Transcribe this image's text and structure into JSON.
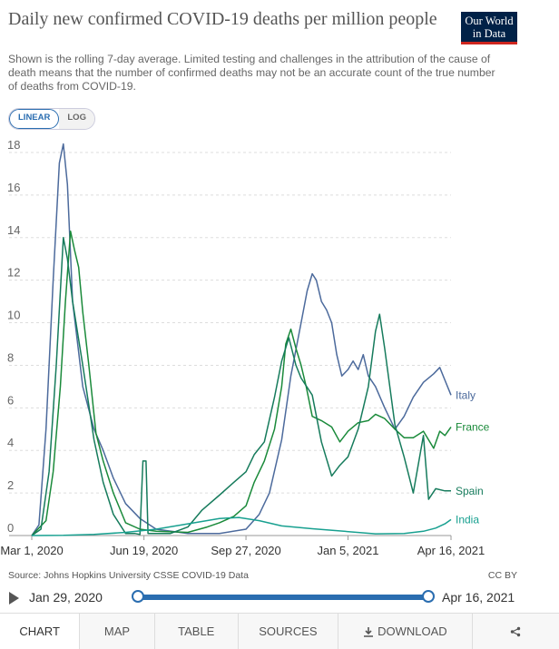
{
  "header": {
    "title": "Daily new confirmed COVID-19 deaths per million people",
    "subtitle": "Shown is the rolling 7-day average. Limited testing and challenges in the attribution of the cause of death means that the number of confirmed deaths may not be an accurate count of the true number of deaths from COVID-19.",
    "logo_line1": "Our World",
    "logo_line2": "in Data",
    "logo_color": "#002147",
    "logo_accent": "#ce261e"
  },
  "scale_toggle": {
    "linear_label": "LINEAR",
    "log_label": "LOG",
    "selected": "LINEAR"
  },
  "footer": {
    "source": "Source: Johns Hopkins University CSSE COVID-19 Data",
    "license": "CC BY"
  },
  "timeline": {
    "start_label": "Jan 29, 2020",
    "end_label": "Apr 16, 2021",
    "accent": "#2a6db0"
  },
  "tabs": [
    {
      "label": "CHART",
      "icon": ""
    },
    {
      "label": "MAP",
      "icon": ""
    },
    {
      "label": "TABLE",
      "icon": ""
    },
    {
      "label": "SOURCES",
      "icon": ""
    },
    {
      "label": "DOWNLOAD",
      "icon": "download-icon"
    },
    {
      "label": "",
      "icon": "share-icon"
    }
  ],
  "chart_data": {
    "type": "line",
    "title": "Daily new confirmed COVID-19 deaths per million people",
    "xlabel": "",
    "ylabel": "",
    "ylim": [
      0,
      18
    ],
    "y_ticks": [
      0,
      2,
      4,
      6,
      8,
      10,
      12,
      14,
      16,
      18
    ],
    "x_ticks": [
      "Mar 1, 2020",
      "Jun 19, 2020",
      "Sep 27, 2020",
      "Jan 5, 2021",
      "Apr 16, 2021"
    ],
    "x_range": [
      "2020-03-01",
      "2021-04-16"
    ],
    "grid": "horizontal dashed",
    "legend": "labels at line ends (right)",
    "series": [
      {
        "name": "Italy",
        "color": "#4c6a9c",
        "points": [
          [
            "2020-03-01",
            0
          ],
          [
            "2020-03-08",
            0.5
          ],
          [
            "2020-03-15",
            5
          ],
          [
            "2020-03-22",
            12
          ],
          [
            "2020-03-28",
            17.5
          ],
          [
            "2020-04-01",
            18.4
          ],
          [
            "2020-04-05",
            16.5
          ],
          [
            "2020-04-10",
            11
          ],
          [
            "2020-04-20",
            7
          ],
          [
            "2020-05-01",
            5
          ],
          [
            "2020-05-10",
            4
          ],
          [
            "2020-05-20",
            2.7
          ],
          [
            "2020-06-01",
            1.5
          ],
          [
            "2020-06-15",
            0.8
          ],
          [
            "2020-07-01",
            0.3
          ],
          [
            "2020-08-01",
            0.1
          ],
          [
            "2020-08-15",
            0.1
          ],
          [
            "2020-09-01",
            0.1
          ],
          [
            "2020-09-27",
            0.3
          ],
          [
            "2020-10-10",
            1
          ],
          [
            "2020-10-20",
            2
          ],
          [
            "2020-11-01",
            4.5
          ],
          [
            "2020-11-10",
            7.5
          ],
          [
            "2020-11-20",
            10
          ],
          [
            "2020-11-26",
            11.5
          ],
          [
            "2020-12-01",
            12.3
          ],
          [
            "2020-12-05",
            12
          ],
          [
            "2020-12-10",
            11
          ],
          [
            "2020-12-15",
            10.6
          ],
          [
            "2020-12-20",
            10
          ],
          [
            "2020-12-25",
            8.5
          ],
          [
            "2020-12-30",
            7.5
          ],
          [
            "2021-01-05",
            7.8
          ],
          [
            "2021-01-10",
            8.2
          ],
          [
            "2021-01-15",
            7.8
          ],
          [
            "2021-01-20",
            8.5
          ],
          [
            "2021-01-25",
            7.5
          ],
          [
            "2021-02-01",
            7
          ],
          [
            "2021-02-10",
            6
          ],
          [
            "2021-02-20",
            5
          ],
          [
            "2021-03-01",
            5.6
          ],
          [
            "2021-03-10",
            6.5
          ],
          [
            "2021-03-20",
            7.2
          ],
          [
            "2021-03-30",
            7.6
          ],
          [
            "2021-04-05",
            7.9
          ],
          [
            "2021-04-10",
            7.3
          ],
          [
            "2021-04-16",
            6.6
          ]
        ]
      },
      {
        "name": "France",
        "color": "#1a8a3a",
        "points": [
          [
            "2020-03-01",
            0
          ],
          [
            "2020-03-15",
            0.7
          ],
          [
            "2020-03-22",
            3
          ],
          [
            "2020-03-29",
            7
          ],
          [
            "2020-04-03",
            11
          ],
          [
            "2020-04-08",
            14.3
          ],
          [
            "2020-04-12",
            13.4
          ],
          [
            "2020-04-16",
            12.6
          ],
          [
            "2020-04-20",
            10.5
          ],
          [
            "2020-04-26",
            8
          ],
          [
            "2020-05-03",
            4.8
          ],
          [
            "2020-05-10",
            3.5
          ],
          [
            "2020-05-20",
            2
          ],
          [
            "2020-06-01",
            0.6
          ],
          [
            "2020-06-15",
            0.3
          ],
          [
            "2020-07-01",
            0.2
          ],
          [
            "2020-08-01",
            0.15
          ],
          [
            "2020-08-20",
            0.4
          ],
          [
            "2020-09-01",
            0.6
          ],
          [
            "2020-09-15",
            0.9
          ],
          [
            "2020-09-27",
            1.4
          ],
          [
            "2020-10-05",
            2.5
          ],
          [
            "2020-10-15",
            3.5
          ],
          [
            "2020-10-25",
            5
          ],
          [
            "2020-11-01",
            7
          ],
          [
            "2020-11-05",
            9
          ],
          [
            "2020-11-10",
            9.7
          ],
          [
            "2020-11-15",
            8.8
          ],
          [
            "2020-11-20",
            8
          ],
          [
            "2020-11-25",
            7
          ],
          [
            "2020-12-01",
            5.6
          ],
          [
            "2020-12-10",
            5.4
          ],
          [
            "2020-12-20",
            5.1
          ],
          [
            "2020-12-28",
            4.4
          ],
          [
            "2021-01-05",
            4.9
          ],
          [
            "2021-01-15",
            5.3
          ],
          [
            "2021-01-25",
            5.4
          ],
          [
            "2021-02-01",
            5.7
          ],
          [
            "2021-02-10",
            5.5
          ],
          [
            "2021-02-20",
            5
          ],
          [
            "2021-03-01",
            4.6
          ],
          [
            "2021-03-10",
            4.6
          ],
          [
            "2021-03-20",
            4.9
          ],
          [
            "2021-03-30",
            4.1
          ],
          [
            "2021-04-05",
            4.9
          ],
          [
            "2021-04-10",
            4.7
          ],
          [
            "2021-04-16",
            5.1
          ]
        ]
      },
      {
        "name": "Spain",
        "color": "#167b5c",
        "points": [
          [
            "2020-03-01",
            0
          ],
          [
            "2020-03-10",
            0.3
          ],
          [
            "2020-03-18",
            3
          ],
          [
            "2020-03-25",
            8
          ],
          [
            "2020-04-01",
            14
          ],
          [
            "2020-04-05",
            13
          ],
          [
            "2020-04-10",
            11
          ],
          [
            "2020-04-20",
            8
          ],
          [
            "2020-05-01",
            4.5
          ],
          [
            "2020-05-10",
            2.5
          ],
          [
            "2020-05-20",
            1
          ],
          [
            "2020-06-01",
            0.1
          ],
          [
            "2020-06-10",
            0.1
          ],
          [
            "2020-06-15",
            0.05
          ],
          [
            "2020-06-18",
            3.5
          ],
          [
            "2020-06-21",
            3.5
          ],
          [
            "2020-06-23",
            0.1
          ],
          [
            "2020-07-15",
            0.1
          ],
          [
            "2020-08-01",
            0.4
          ],
          [
            "2020-08-15",
            1.2
          ],
          [
            "2020-09-01",
            1.9
          ],
          [
            "2020-09-15",
            2.5
          ],
          [
            "2020-09-27",
            3
          ],
          [
            "2020-10-05",
            3.8
          ],
          [
            "2020-10-15",
            4.4
          ],
          [
            "2020-10-25",
            6.5
          ],
          [
            "2020-11-01",
            8.2
          ],
          [
            "2020-11-08",
            9.3
          ],
          [
            "2020-11-15",
            8
          ],
          [
            "2020-11-20",
            7.4
          ],
          [
            "2020-12-01",
            6.6
          ],
          [
            "2020-12-10",
            4.4
          ],
          [
            "2020-12-20",
            2.8
          ],
          [
            "2020-12-28",
            3.3
          ],
          [
            "2021-01-05",
            3.7
          ],
          [
            "2021-01-15",
            5
          ],
          [
            "2021-01-25",
            7
          ],
          [
            "2021-02-01",
            9.6
          ],
          [
            "2021-02-05",
            10.4
          ],
          [
            "2021-02-10",
            8.8
          ],
          [
            "2021-02-20",
            5.2
          ],
          [
            "2021-03-01",
            3.7
          ],
          [
            "2021-03-10",
            2
          ],
          [
            "2021-03-20",
            4.7
          ],
          [
            "2021-03-25",
            1.7
          ],
          [
            "2021-04-01",
            2.2
          ],
          [
            "2021-04-10",
            2.1
          ],
          [
            "2021-04-16",
            2.1
          ]
        ]
      },
      {
        "name": "India",
        "color": "#18a090",
        "points": [
          [
            "2020-03-01",
            0
          ],
          [
            "2020-04-01",
            0.01
          ],
          [
            "2020-05-01",
            0.05
          ],
          [
            "2020-06-01",
            0.15
          ],
          [
            "2020-07-01",
            0.3
          ],
          [
            "2020-08-01",
            0.55
          ],
          [
            "2020-09-01",
            0.8
          ],
          [
            "2020-09-20",
            0.85
          ],
          [
            "2020-10-10",
            0.7
          ],
          [
            "2020-11-01",
            0.45
          ],
          [
            "2020-12-01",
            0.32
          ],
          [
            "2021-01-01",
            0.2
          ],
          [
            "2021-02-01",
            0.08
          ],
          [
            "2021-03-01",
            0.1
          ],
          [
            "2021-03-20",
            0.2
          ],
          [
            "2021-04-01",
            0.35
          ],
          [
            "2021-04-10",
            0.55
          ],
          [
            "2021-04-16",
            0.75
          ]
        ]
      }
    ]
  }
}
